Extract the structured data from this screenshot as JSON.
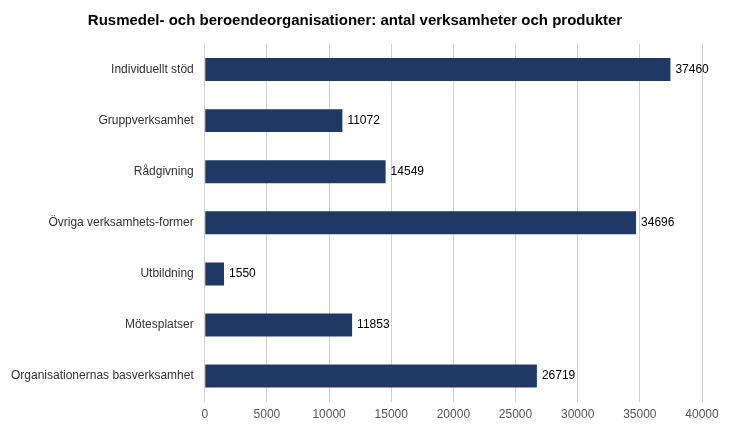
{
  "chart_data": {
    "type": "bar",
    "orientation": "horizontal",
    "title": "Rusmedel- och beroendeorganisationer: antal verksamheter och produkter",
    "categories": [
      "Organisationernas basverksamhet",
      "Mötesplatser",
      "Utbildning",
      "Övriga verksamhets-former",
      "Rådgivning",
      "Gruppverksamhet",
      "Individuellt stöd"
    ],
    "values": [
      26719,
      11853,
      1550,
      34696,
      14549,
      11072,
      37460
    ],
    "color": "#1F3864",
    "xlim": [
      0,
      40000
    ],
    "xticks": [
      0,
      5000,
      10000,
      15000,
      20000,
      25000,
      30000,
      35000,
      40000
    ],
    "grid": true,
    "data_labels": true
  }
}
